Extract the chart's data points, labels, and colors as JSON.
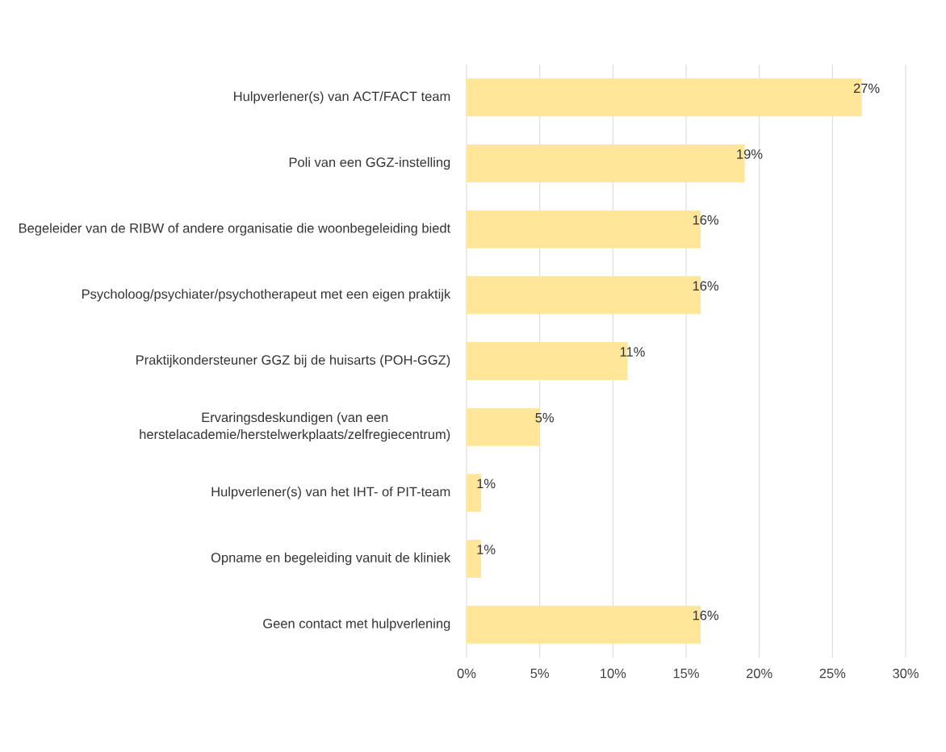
{
  "chart_data": {
    "type": "bar",
    "orientation": "horizontal",
    "categories": [
      "Hulpverlener(s) van ACT/FACT team",
      "Poli van een GGZ-instelling",
      "Begeleider van de RIBW of andere organisatie die woonbegeleiding biedt",
      "Psycholoog/psychiater/psychotherapeut met een eigen praktijk",
      "Praktijkondersteuner GGZ bij de huisarts (POH-GGZ)",
      "Ervaringsdeskundigen (van een herstelacademie/herstelwerkplaats/zelfregiecentrum)",
      "Hulpverlener(s) van het IHT- of PIT-team",
      "Opname en begeleiding vanuit de kliniek",
      "Geen contact met hulpverlening"
    ],
    "values": [
      27,
      19,
      16,
      16,
      11,
      5,
      1,
      1,
      16
    ],
    "value_labels": [
      "27%",
      "19%",
      "16%",
      "16%",
      "11%",
      "5%",
      "1%",
      "1%",
      "16%"
    ],
    "color": "#ffe699",
    "xlim": [
      0,
      30
    ],
    "xticks": [
      {
        "value": 0,
        "label": "0%"
      },
      {
        "value": 5,
        "label": "5%"
      },
      {
        "value": 10,
        "label": "10%"
      },
      {
        "value": 15,
        "label": "15%"
      },
      {
        "value": 20,
        "label": "20%"
      },
      {
        "value": 25,
        "label": "25%"
      },
      {
        "value": 30,
        "label": "30%"
      }
    ],
    "grid": "x"
  }
}
